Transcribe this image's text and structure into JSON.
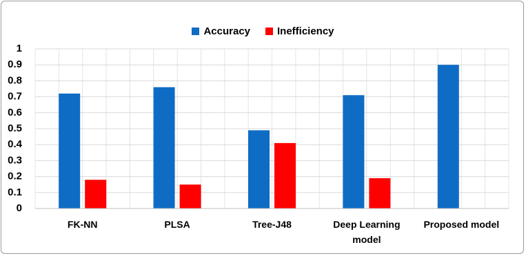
{
  "chart_data": {
    "type": "bar",
    "categories": [
      "FK-NN",
      "PLSA",
      "Tree-J48",
      "Deep Learning model",
      "Proposed model"
    ],
    "series": [
      {
        "name": "Accuracy",
        "color": "#0f6cc4",
        "values": [
          0.72,
          0.76,
          0.49,
          0.71,
          0.9
        ]
      },
      {
        "name": "Inefficiency",
        "color": "#ff0000",
        "values": [
          0.18,
          0.15,
          0.41,
          0.19,
          0
        ]
      }
    ],
    "ylim": [
      0,
      1
    ],
    "yticks": [
      0,
      0.1,
      0.2,
      0.3,
      0.4,
      0.5,
      0.6,
      0.7,
      0.8,
      0.9,
      1
    ],
    "grid": true,
    "legend": "top"
  }
}
